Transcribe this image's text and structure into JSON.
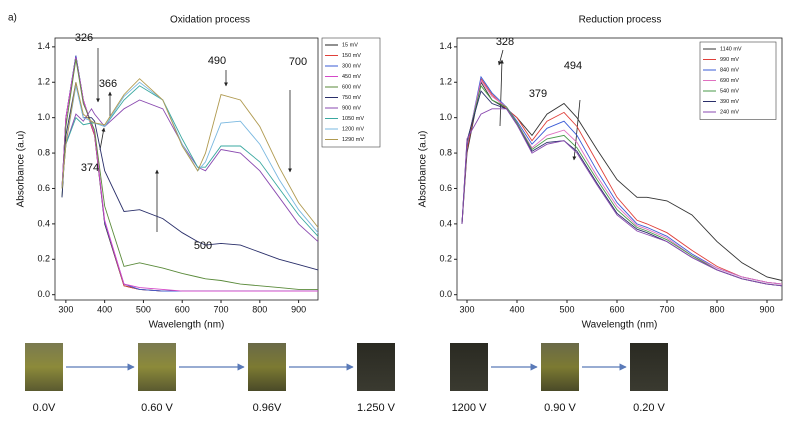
{
  "panel_label": "a)",
  "chart_data": [
    {
      "type": "line",
      "title": "Oxidation process",
      "x_label": "Wavelength (nm)",
      "y_label": "Absorbance (a.u)",
      "x": [
        290,
        300,
        326,
        345,
        366,
        374,
        400,
        450,
        490,
        550,
        600,
        640,
        660,
        700,
        750,
        800,
        850,
        900,
        950
      ],
      "xlim": [
        272,
        950
      ],
      "ylim": [
        -0.03,
        1.45
      ],
      "xticks": [
        300,
        400,
        500,
        600,
        700,
        800,
        900
      ],
      "yticks": [
        {
          "value": 0,
          "label": "0.0"
        },
        {
          "value": 0.2,
          "label": "0.2"
        },
        {
          "value": 0.4,
          "label": "0.4"
        },
        {
          "value": 0.6,
          "label": "0.6"
        },
        {
          "value": 0.8,
          "label": "0.8"
        },
        {
          "value": 1,
          "label": "1.0"
        },
        {
          "value": 1.2,
          "label": "1.2"
        },
        {
          "value": 1.4,
          "label": "1.4"
        }
      ],
      "annotations": [
        "326",
        "366",
        "374",
        "490",
        "700",
        "500"
      ],
      "series": [
        {
          "name": "15 mV",
          "color": "#222222",
          "values": [
            0.6,
            1.0,
            1.35,
            1.1,
            0.95,
            0.9,
            0.4,
            0.05,
            0.03,
            0.02,
            0.02,
            0.02,
            0.02,
            0.02,
            0.02,
            0.02,
            0.02,
            0.02,
            0.02
          ]
        },
        {
          "name": "150 mV",
          "color": "#e0403a",
          "values": [
            0.6,
            1.0,
            1.34,
            1.1,
            0.95,
            0.9,
            0.41,
            0.05,
            0.03,
            0.02,
            0.02,
            0.02,
            0.02,
            0.02,
            0.02,
            0.02,
            0.02,
            0.02,
            0.02
          ]
        },
        {
          "name": "300 mV",
          "color": "#3a5bd6",
          "values": [
            0.6,
            1.0,
            1.35,
            1.1,
            0.96,
            0.91,
            0.41,
            0.06,
            0.03,
            0.02,
            0.02,
            0.02,
            0.02,
            0.02,
            0.02,
            0.02,
            0.02,
            0.02,
            0.02
          ]
        },
        {
          "name": "450 mV",
          "color": "#d448c8",
          "values": [
            0.6,
            1.0,
            1.34,
            1.1,
            0.96,
            0.91,
            0.42,
            0.06,
            0.04,
            0.03,
            0.02,
            0.02,
            0.02,
            0.02,
            0.02,
            0.02,
            0.02,
            0.02,
            0.02
          ]
        },
        {
          "name": "600 mV",
          "color": "#5a8a3a",
          "values": [
            0.55,
            0.95,
            1.33,
            1.08,
            0.97,
            0.93,
            0.5,
            0.16,
            0.18,
            0.15,
            0.12,
            0.1,
            0.09,
            0.08,
            0.06,
            0.05,
            0.04,
            0.03,
            0.03
          ]
        },
        {
          "name": "750 mV",
          "color": "#2a2f6a",
          "values": [
            0.55,
            0.9,
            1.2,
            1.0,
            1.0,
            0.98,
            0.7,
            0.47,
            0.48,
            0.43,
            0.35,
            0.3,
            0.28,
            0.29,
            0.28,
            0.24,
            0.2,
            0.17,
            0.14
          ]
        },
        {
          "name": "900 mV",
          "color": "#8a4ab0",
          "values": [
            0.6,
            0.85,
            1.02,
            0.98,
            1.05,
            1.02,
            0.95,
            1.05,
            1.1,
            1.05,
            0.85,
            0.72,
            0.7,
            0.82,
            0.8,
            0.7,
            0.55,
            0.4,
            0.3
          ]
        },
        {
          "name": "1050 mV",
          "color": "#3aa8a0",
          "values": [
            0.6,
            0.85,
            1.0,
            0.96,
            0.97,
            0.97,
            0.95,
            1.1,
            1.18,
            1.1,
            0.88,
            0.72,
            0.72,
            0.84,
            0.84,
            0.75,
            0.6,
            0.45,
            0.33
          ]
        },
        {
          "name": "1200 mV",
          "color": "#7ab8e0",
          "values": [
            0.6,
            0.85,
            1.18,
            1.0,
            0.98,
            0.97,
            0.95,
            1.12,
            1.2,
            1.1,
            0.85,
            0.7,
            0.75,
            0.97,
            0.98,
            0.85,
            0.65,
            0.48,
            0.35
          ]
        },
        {
          "name": "1290 mV",
          "color": "#b09a50",
          "values": [
            0.6,
            0.85,
            1.2,
            1.02,
            0.98,
            0.97,
            0.96,
            1.13,
            1.22,
            1.1,
            0.84,
            0.7,
            0.8,
            1.13,
            1.1,
            0.95,
            0.72,
            0.52,
            0.38
          ]
        }
      ]
    },
    {
      "type": "line",
      "title": "Reduction process",
      "x_label": "Wavelength (nm)",
      "y_label": "Absorbance (a.u)",
      "x": [
        290,
        300,
        328,
        350,
        379,
        400,
        430,
        460,
        494,
        520,
        560,
        600,
        640,
        660,
        700,
        750,
        800,
        850,
        900,
        930
      ],
      "xlim": [
        280,
        930
      ],
      "ylim": [
        -0.03,
        1.45
      ],
      "xticks": [
        300,
        400,
        500,
        600,
        700,
        800,
        900
      ],
      "yticks": [
        {
          "value": 0,
          "label": "0.0"
        },
        {
          "value": 0.2,
          "label": "0.2"
        },
        {
          "value": 0.4,
          "label": "0.4"
        },
        {
          "value": 0.6,
          "label": "0.6"
        },
        {
          "value": 0.8,
          "label": "0.8"
        },
        {
          "value": 1,
          "label": "1.0"
        },
        {
          "value": 1.2,
          "label": "1.2"
        },
        {
          "value": 1.4,
          "label": "1.4"
        }
      ],
      "annotations": [
        "328",
        "379",
        "494"
      ],
      "series": [
        {
          "name": "1140 mV",
          "color": "#333333",
          "values": [
            0.4,
            0.8,
            1.2,
            1.1,
            1.05,
            1.0,
            0.9,
            1.02,
            1.08,
            1.0,
            0.82,
            0.65,
            0.55,
            0.55,
            0.53,
            0.45,
            0.3,
            0.18,
            0.1,
            0.08
          ]
        },
        {
          "name": "990 mV",
          "color": "#e0403a",
          "values": [
            0.4,
            0.82,
            1.22,
            1.13,
            1.05,
            1.0,
            0.87,
            0.98,
            1.03,
            0.95,
            0.75,
            0.55,
            0.42,
            0.4,
            0.35,
            0.25,
            0.16,
            0.1,
            0.07,
            0.06
          ]
        },
        {
          "name": "840 mV",
          "color": "#3a5bd6",
          "values": [
            0.4,
            0.84,
            1.23,
            1.14,
            1.06,
            0.98,
            0.85,
            0.94,
            0.98,
            0.9,
            0.7,
            0.52,
            0.4,
            0.38,
            0.33,
            0.23,
            0.15,
            0.1,
            0.07,
            0.06
          ]
        },
        {
          "name": "690 mV",
          "color": "#e070c0",
          "values": [
            0.4,
            0.85,
            1.21,
            1.12,
            1.06,
            0.97,
            0.83,
            0.9,
            0.93,
            0.86,
            0.67,
            0.5,
            0.39,
            0.37,
            0.32,
            0.22,
            0.15,
            0.1,
            0.07,
            0.06
          ]
        },
        {
          "name": "540 mV",
          "color": "#4a9a4a",
          "values": [
            0.4,
            0.86,
            1.18,
            1.1,
            1.06,
            0.97,
            0.82,
            0.88,
            0.9,
            0.83,
            0.65,
            0.48,
            0.38,
            0.36,
            0.31,
            0.22,
            0.14,
            0.09,
            0.06,
            0.05
          ]
        },
        {
          "name": "390 mV",
          "color": "#2a2f6a",
          "values": [
            0.4,
            0.87,
            1.15,
            1.08,
            1.05,
            0.96,
            0.81,
            0.86,
            0.87,
            0.81,
            0.63,
            0.46,
            0.37,
            0.35,
            0.3,
            0.21,
            0.14,
            0.09,
            0.06,
            0.05
          ]
        },
        {
          "name": "240 mV",
          "color": "#8a4ab0",
          "values": [
            0.4,
            0.88,
            1.02,
            1.05,
            1.05,
            0.96,
            0.8,
            0.85,
            0.87,
            0.8,
            0.62,
            0.45,
            0.36,
            0.34,
            0.3,
            0.21,
            0.14,
            0.09,
            0.06,
            0.05
          ]
        }
      ]
    }
  ],
  "photos": {
    "oxidation": [
      "0.0V",
      "0.60 V",
      "0.96V",
      "1.250 V"
    ],
    "reduction": [
      "1200 V",
      "0.90 V",
      "0.20 V"
    ]
  }
}
